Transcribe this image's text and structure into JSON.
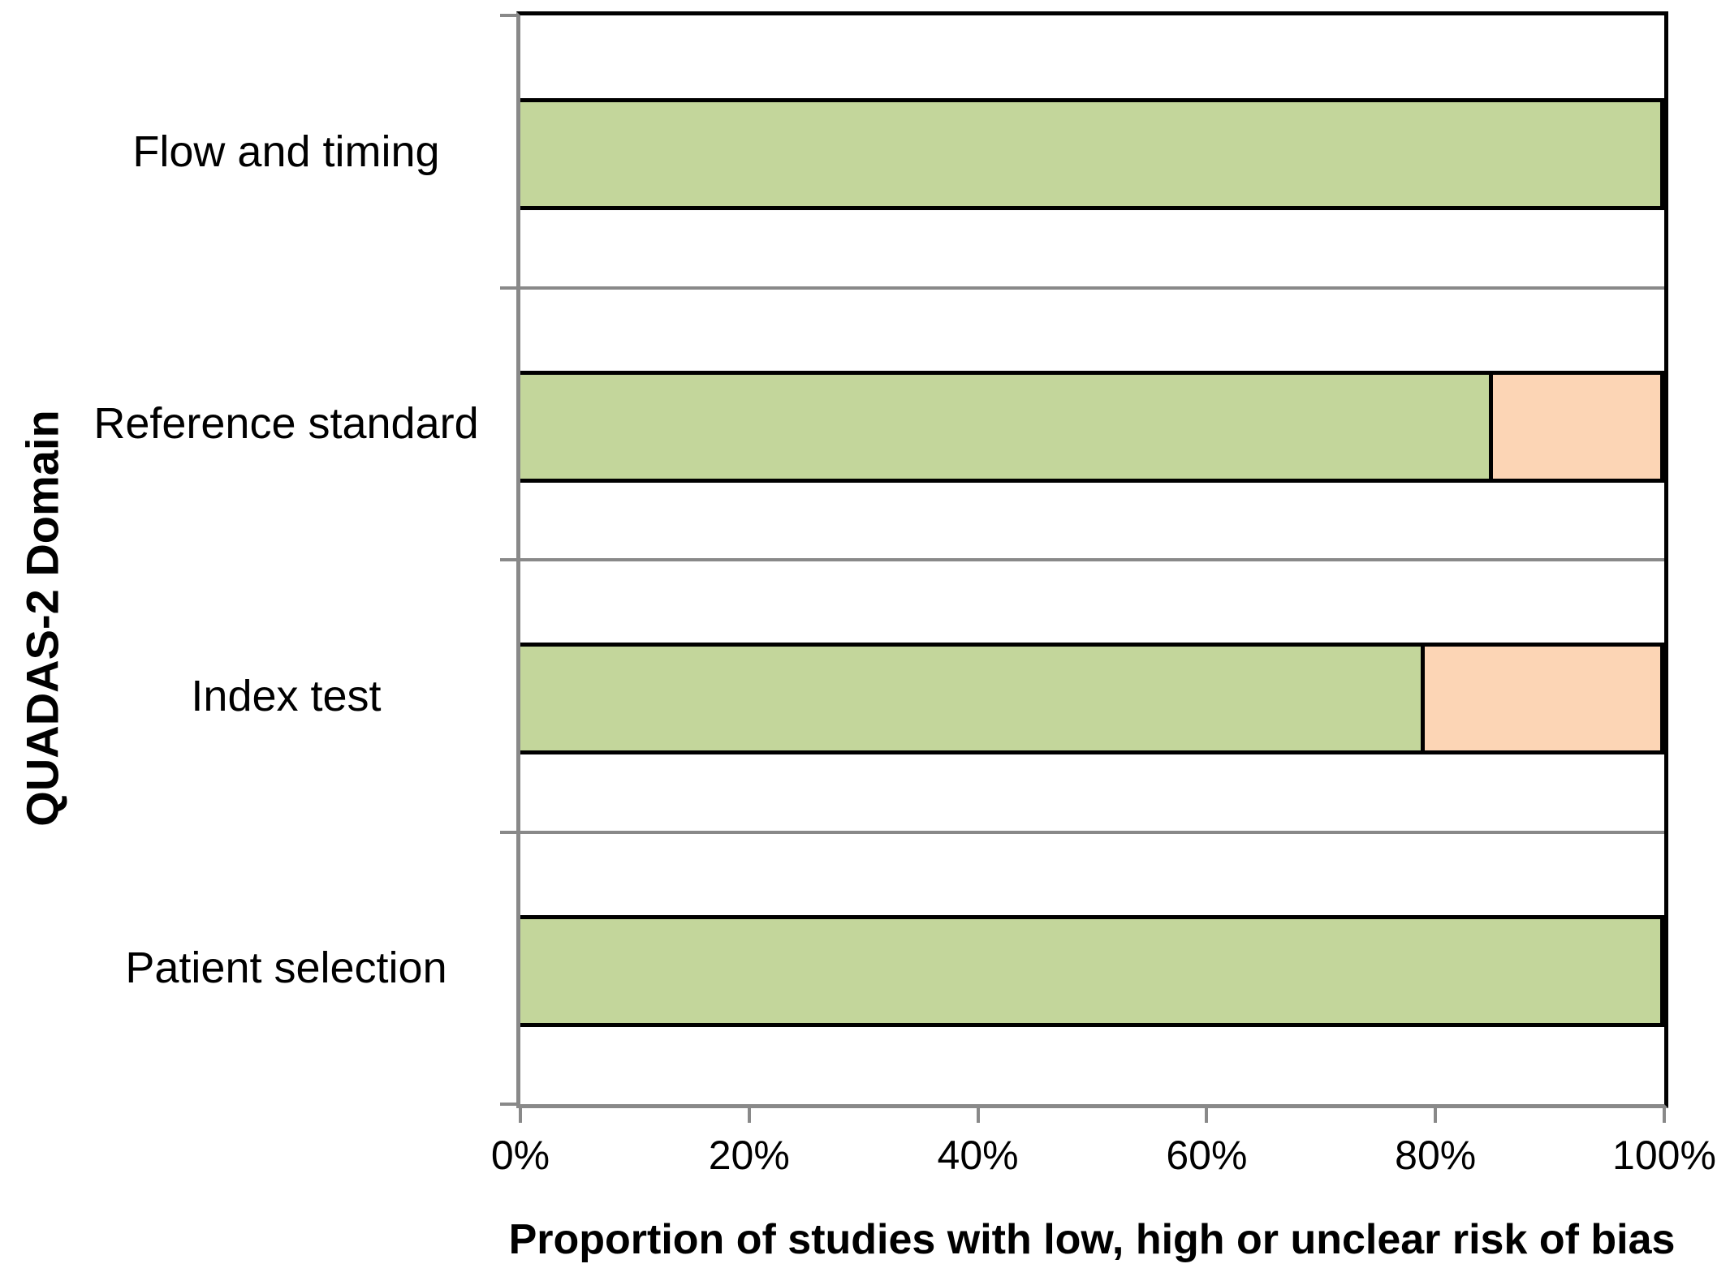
{
  "chart_data": {
    "type": "bar",
    "orientation": "horizontal",
    "stacked": true,
    "title": "",
    "xlabel": "Proportion of studies with low, high or unclear risk of bias",
    "ylabel": "QUADAS-2 Domain",
    "categories": [
      "Flow and timing",
      "Reference standard",
      "Index test",
      "Patient selection"
    ],
    "series": [
      {
        "name": "green",
        "color": "#C3D69B",
        "values": [
          100,
          85,
          79,
          100
        ]
      },
      {
        "name": "orange",
        "color": "#FCD5B5",
        "values": [
          0,
          15,
          21,
          0
        ]
      }
    ],
    "x_ticks": [
      "0%",
      "20%",
      "40%",
      "60%",
      "80%",
      "100%"
    ],
    "xlim": [
      0,
      100
    ],
    "legend_position": "none",
    "category_gridlines": true
  },
  "styles": {
    "axis_color": "#898989",
    "bar_border_color": "#000000",
    "text_color": "#000000",
    "background": "#FFFFFF"
  }
}
